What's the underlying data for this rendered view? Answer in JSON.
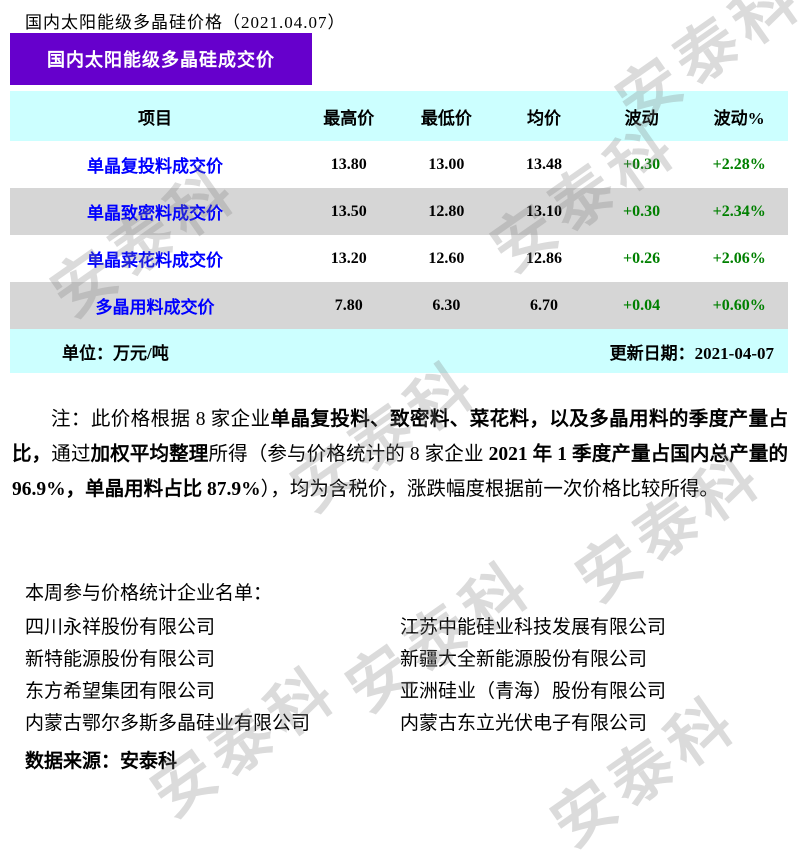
{
  "title": "国内太阳能级多晶硅价格（2021.04.07）",
  "banner": "国内太阳能级多晶硅成交价",
  "table": {
    "headers": [
      "项目",
      "最高价",
      "最低价",
      "均价",
      "波动",
      "波动%"
    ],
    "rows": [
      {
        "item": "单晶复投料成交价",
        "high": "13.80",
        "low": "13.00",
        "avg": "13.48",
        "change": "+0.30",
        "change_pct": "+2.28%"
      },
      {
        "item": "单晶致密料成交价",
        "high": "13.50",
        "low": "12.80",
        "avg": "13.10",
        "change": "+0.30",
        "change_pct": "+2.34%"
      },
      {
        "item": "单晶菜花料成交价",
        "high": "13.20",
        "low": "12.60",
        "avg": "12.86",
        "change": "+0.26",
        "change_pct": "+2.06%"
      },
      {
        "item": "多晶用料成交价",
        "high": "7.80",
        "low": "6.30",
        "avg": "6.70",
        "change": "+0.04",
        "change_pct": "+0.60%"
      }
    ],
    "unit_label": "单位：万元/吨",
    "update_label": "更新日期：2021-04-07"
  },
  "note": {
    "segments": [
      {
        "text": "注：此价格根据 8 家企业"
      },
      {
        "text": "单晶复投料、致密料、菜花料，以及多晶用料的季度产量占比，"
      },
      {
        "text": "通过"
      },
      {
        "text": "加权平均整理"
      },
      {
        "text": "所得（参与价格统计的 8 家企业 "
      },
      {
        "text": "2021 年 1 季度产量占国内总产量的 96.9%，单晶用料占比 87.9%"
      },
      {
        "text": "），均为含税价，涨跌幅度根据前一次价格比较所得。"
      }
    ]
  },
  "companies": {
    "heading": "本周参与价格统计企业名单：",
    "left": [
      "四川永祥股份有限公司",
      "新特能源股份有限公司",
      "东方希望集团有限公司",
      "内蒙古鄂尔多斯多晶硅业有限公司"
    ],
    "right": [
      "江苏中能硅业科技发展有限公司",
      "新疆大全新能源股份有限公司",
      "亚洲硅业（青海）股份有限公司",
      "内蒙古东立光伏电子有限公司"
    ]
  },
  "source": "数据来源：安泰科",
  "watermark_text": "安泰科",
  "colors": {
    "banner": "#6600CC",
    "header_bg": "#CCFFFF",
    "row_alt_bg": "#D6D6D6",
    "item_color": "#0000FF",
    "positive_color": "#008000"
  }
}
